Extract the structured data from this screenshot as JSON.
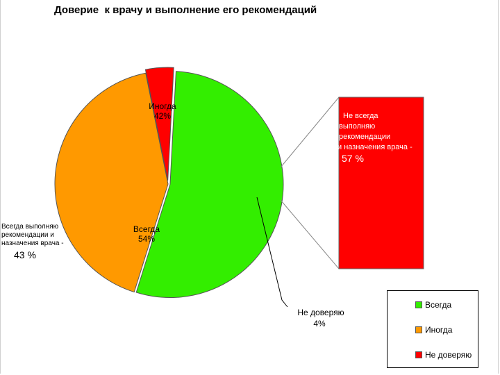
{
  "chart_data": {
    "type": "pie",
    "title": "Доверие  к врачу и выполнение его рекомендаций",
    "slices": [
      {
        "name": "Всегда",
        "label": "Всегда",
        "pct_label": "54%",
        "value": 54,
        "color": "#33ee00"
      },
      {
        "name": "Иногда",
        "label": "Иногда",
        "pct_label": "42%",
        "value": 42,
        "color": "#ff9900"
      },
      {
        "name": "Не доверяю",
        "label": "Не доверяю",
        "pct_label": "4%",
        "value": 4,
        "color": "#ff0000"
      }
    ],
    "exploded_slice": "Не доверяю",
    "breakdown_bar": {
      "of_slice": "Всегда",
      "color": "#ff0000",
      "label_lines": [
        "Не всегда",
        "выполняю",
        "рекомендации",
        "и назначения врача -"
      ],
      "pct_label": "57 %",
      "value": 57
    },
    "side_annotation": {
      "of_slice": "Всегда",
      "label_lines": [
        "Всегда выполняю",
        "рекомендации и",
        "назначения врача -"
      ],
      "pct_label": "43 %",
      "value": 43
    },
    "legend": {
      "placement": "bottom-right",
      "items": [
        {
          "label": "Всегда",
          "color": "#33ee00"
        },
        {
          "label": "Иногда",
          "color": "#ff9900"
        },
        {
          "label": "Не доверяю",
          "color": "#ff0000"
        }
      ]
    }
  }
}
